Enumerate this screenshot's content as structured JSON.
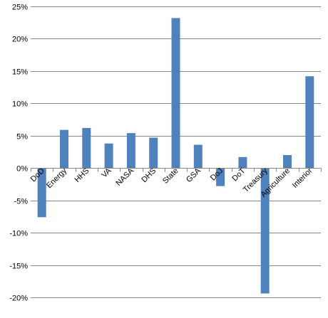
{
  "chart_data": {
    "type": "bar",
    "title": "",
    "xlabel": "",
    "ylabel": "",
    "categories": [
      "DoD",
      "Energy",
      "HHS",
      "VA",
      "NASA",
      "DHS",
      "State",
      "GSA",
      "DoJ",
      "DoT",
      "Treasury",
      "Agriculture",
      "Interior"
    ],
    "values": [
      -7.6,
      5.9,
      6.2,
      3.8,
      5.4,
      4.7,
      23.2,
      3.6,
      -2.8,
      1.7,
      -19.4,
      2.0,
      14.2
    ],
    "ylim": [
      -20,
      25
    ],
    "ytick_values": [
      -20,
      -15,
      -10,
      -5,
      0,
      5,
      10,
      15,
      20,
      25
    ],
    "ytick_labels": [
      "-20%",
      "-15%",
      "-10%",
      "-5%",
      "0%",
      "5%",
      "10%",
      "15%",
      "20%",
      "25%"
    ],
    "grid": true,
    "legend": "none",
    "bar_color": "#4F81BD",
    "grid_color": "#868686"
  }
}
